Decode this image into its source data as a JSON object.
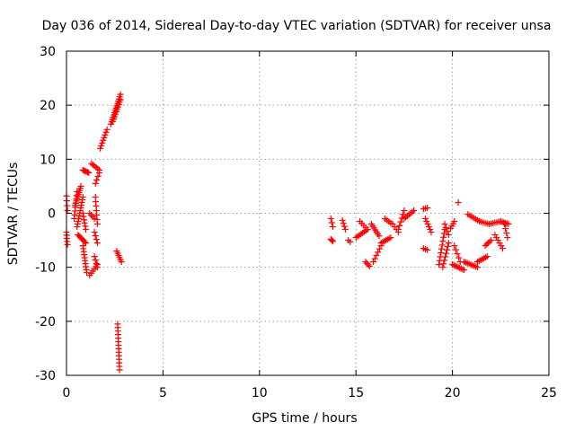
{
  "chart_data": {
    "type": "scatter",
    "title": "Day 036 of 2014, Sidereal Day-to-day VTEC variation (SDTVAR) for receiver unsa",
    "xlabel": "GPS time / hours",
    "ylabel": "SDTVAR / TECUs",
    "xlim": [
      0,
      25
    ],
    "ylim": [
      -30,
      30
    ],
    "xticks": [
      0,
      5,
      10,
      15,
      20,
      25
    ],
    "yticks": [
      -30,
      -20,
      -10,
      0,
      10,
      20,
      30
    ],
    "grid": true,
    "marker": "+",
    "color": "#ff0000",
    "segments": [
      {
        "x0": 0.0,
        "y0": 3.2,
        "x1": 0.05,
        "y1": 0.5,
        "n": 4
      },
      {
        "x0": 0.0,
        "y0": -3.5,
        "x1": 0.05,
        "y1": -5.8,
        "n": 5
      },
      {
        "x0": 0.4,
        "y0": -1.0,
        "x1": 0.55,
        "y1": 4.0,
        "n": 8
      },
      {
        "x0": 0.45,
        "y0": 1.5,
        "x1": 0.75,
        "y1": 5.0,
        "n": 10
      },
      {
        "x0": 0.55,
        "y0": -2.5,
        "x1": 0.85,
        "y1": 3.0,
        "n": 12
      },
      {
        "x0": 0.6,
        "y0": -4.0,
        "x1": 1.0,
        "y1": -5.5,
        "n": 8
      },
      {
        "x0": 0.85,
        "y0": 0.0,
        "x1": 1.0,
        "y1": -3.0,
        "n": 6
      },
      {
        "x0": 0.85,
        "y0": -6.0,
        "x1": 1.05,
        "y1": -11.0,
        "n": 10
      },
      {
        "x0": 0.85,
        "y0": 8.0,
        "x1": 1.15,
        "y1": 7.5,
        "n": 6
      },
      {
        "x0": 1.2,
        "y0": -11.5,
        "x1": 1.6,
        "y1": -9.5,
        "n": 6
      },
      {
        "x0": 1.3,
        "y0": 9.2,
        "x1": 1.7,
        "y1": 8.0,
        "n": 6
      },
      {
        "x0": 1.5,
        "y0": 3.0,
        "x1": 1.6,
        "y1": -2.0,
        "n": 7
      },
      {
        "x0": 1.45,
        "y0": -3.5,
        "x1": 1.6,
        "y1": -5.5,
        "n": 4
      },
      {
        "x0": 1.45,
        "y0": -8.0,
        "x1": 1.6,
        "y1": -10.0,
        "n": 4
      },
      {
        "x0": 1.5,
        "y0": 5.5,
        "x1": 1.7,
        "y1": 7.5,
        "n": 4
      },
      {
        "x0": 1.2,
        "y0": 0.0,
        "x1": 1.45,
        "y1": -1.0,
        "n": 4
      },
      {
        "x0": 1.75,
        "y0": 12.0,
        "x1": 2.1,
        "y1": 15.5,
        "n": 8
      },
      {
        "x0": 2.3,
        "y0": 16.5,
        "x1": 2.8,
        "y1": 22.0,
        "n": 14
      },
      {
        "x0": 2.4,
        "y0": 17.0,
        "x1": 2.8,
        "y1": 21.0,
        "n": 10
      },
      {
        "x0": 2.6,
        "y0": -7.0,
        "x1": 2.85,
        "y1": -9.0,
        "n": 6
      },
      {
        "x0": 2.65,
        "y0": -20.5,
        "x1": 2.75,
        "y1": -29.0,
        "n": 14
      },
      {
        "x0": 13.7,
        "y0": -1.0,
        "x1": 13.8,
        "y1": -2.5,
        "n": 3
      },
      {
        "x0": 13.7,
        "y0": -4.8,
        "x1": 13.8,
        "y1": -5.2,
        "n": 3
      },
      {
        "x0": 14.3,
        "y0": -1.3,
        "x1": 14.45,
        "y1": -3.0,
        "n": 4
      },
      {
        "x0": 14.6,
        "y0": -5.0,
        "x1": 14.7,
        "y1": -5.3,
        "n": 2
      },
      {
        "x0": 15.0,
        "y0": -4.5,
        "x1": 15.6,
        "y1": -3.0,
        "n": 8
      },
      {
        "x0": 15.2,
        "y0": -1.5,
        "x1": 15.6,
        "y1": -3.0,
        "n": 5
      },
      {
        "x0": 15.5,
        "y0": -9.0,
        "x1": 15.7,
        "y1": -9.8,
        "n": 4
      },
      {
        "x0": 15.8,
        "y0": -2.0,
        "x1": 16.2,
        "y1": -4.2,
        "n": 7
      },
      {
        "x0": 15.9,
        "y0": -9.0,
        "x1": 16.3,
        "y1": -6.0,
        "n": 6
      },
      {
        "x0": 16.3,
        "y0": -5.5,
        "x1": 16.8,
        "y1": -4.5,
        "n": 7
      },
      {
        "x0": 16.5,
        "y0": -1.0,
        "x1": 16.8,
        "y1": -1.8,
        "n": 4
      },
      {
        "x0": 16.9,
        "y0": -2.0,
        "x1": 17.2,
        "y1": -3.5,
        "n": 4
      },
      {
        "x0": 17.2,
        "y0": -3.0,
        "x1": 17.5,
        "y1": 0.5,
        "n": 6
      },
      {
        "x0": 17.5,
        "y0": -1.0,
        "x1": 18.0,
        "y1": 0.5,
        "n": 7
      },
      {
        "x0": 18.5,
        "y0": 0.8,
        "x1": 18.7,
        "y1": 1.0,
        "n": 3
      },
      {
        "x0": 18.5,
        "y0": -6.5,
        "x1": 18.7,
        "y1": -6.8,
        "n": 3
      },
      {
        "x0": 18.6,
        "y0": -1.0,
        "x1": 18.9,
        "y1": -3.5,
        "n": 6
      },
      {
        "x0": 19.3,
        "y0": -9.5,
        "x1": 19.6,
        "y1": -3.0,
        "n": 10
      },
      {
        "x0": 19.5,
        "y0": -10.0,
        "x1": 19.8,
        "y1": -5.5,
        "n": 8
      },
      {
        "x0": 19.6,
        "y0": -2.0,
        "x1": 19.8,
        "y1": -4.0,
        "n": 4
      },
      {
        "x0": 19.9,
        "y0": -2.8,
        "x1": 20.1,
        "y1": -1.5,
        "n": 4
      },
      {
        "x0": 20.0,
        "y0": -9.5,
        "x1": 20.6,
        "y1": -10.5,
        "n": 9
      },
      {
        "x0": 20.1,
        "y0": -6.0,
        "x1": 20.4,
        "y1": -9.0,
        "n": 5
      },
      {
        "x0": 20.3,
        "y0": 2.0,
        "x1": 20.3,
        "y1": 2.0,
        "n": 1
      },
      {
        "x0": 20.6,
        "y0": -9.0,
        "x1": 21.3,
        "y1": -10.0,
        "n": 9
      },
      {
        "x0": 20.8,
        "y0": -0.2,
        "x1": 21.4,
        "y1": -1.5,
        "n": 7
      },
      {
        "x0": 21.3,
        "y0": -9.0,
        "x1": 21.8,
        "y1": -8.0,
        "n": 7
      },
      {
        "x0": 21.4,
        "y0": -1.5,
        "x1": 21.9,
        "y1": -2.0,
        "n": 6
      },
      {
        "x0": 21.7,
        "y0": -6.0,
        "x1": 22.0,
        "y1": -5.0,
        "n": 5
      },
      {
        "x0": 21.9,
        "y0": -2.0,
        "x1": 22.5,
        "y1": -1.5,
        "n": 7
      },
      {
        "x0": 22.2,
        "y0": -4.0,
        "x1": 22.6,
        "y1": -6.5,
        "n": 6
      },
      {
        "x0": 22.5,
        "y0": -1.5,
        "x1": 22.9,
        "y1": -2.0,
        "n": 6
      },
      {
        "x0": 22.7,
        "y0": -2.0,
        "x1": 22.85,
        "y1": -4.5,
        "n": 4
      }
    ]
  }
}
